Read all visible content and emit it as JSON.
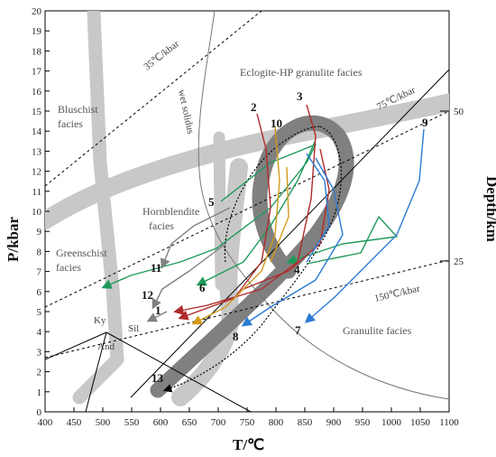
{
  "axes": {
    "x_label": "T/℃",
    "y_label": "P/kbar",
    "right_label": "Depth/km",
    "x_ticks": [
      "400",
      "450",
      "500",
      "550",
      "600",
      "650",
      "700",
      "750",
      "800",
      "850",
      "900",
      "950",
      "1000",
      "1050",
      "1100"
    ],
    "y_ticks": [
      "0",
      "1",
      "2",
      "3",
      "4",
      "5",
      "6",
      "7",
      "8",
      "9",
      "10",
      "11",
      "12",
      "13",
      "14",
      "15",
      "16",
      "17",
      "18",
      "19",
      "20"
    ],
    "depth_ticks": [
      "50",
      "25"
    ]
  },
  "facies": {
    "eclogite": "Eclogite-HP granulite facies",
    "blueschist_1": "Bluschist",
    "blueschist_2": "facies",
    "hornblendite_1": "Hornblendite",
    "hornblendite_2": "facies",
    "greenschist_1": "Greenschist",
    "greenschist_2": "facies",
    "granulite": "Granulite facies"
  },
  "lines": {
    "geotherm_35": "35℃/kbar",
    "geotherm_75": "75℃/kbar",
    "geotherm_150": "150℃/kbar",
    "wet_solidus": "wet solidus"
  },
  "aluminosilicate": {
    "ky": "Ky",
    "sil": "Sil",
    "and": "And"
  },
  "path_numbers": [
    "1",
    "2",
    "3",
    "4",
    "5",
    "6",
    "7",
    "8",
    "9",
    "10",
    "11",
    "12",
    "13"
  ],
  "colors": {
    "facies_band": "#c8c8c8",
    "dark_band": "#808080",
    "green": "#1e9a5a",
    "red": "#b02a2a",
    "blue": "#2a7bd4",
    "orange": "#d49a1a",
    "gray_path": "#808080",
    "black": "#000000"
  }
}
